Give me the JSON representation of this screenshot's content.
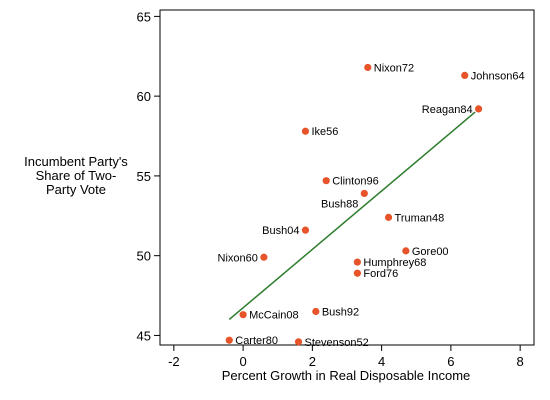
{
  "chart_data": {
    "type": "scatter",
    "xlabel": "Percent Growth in Real Disposable Income",
    "ylabel_lines": [
      "Incumbent Party's",
      "Share of Two-",
      "Party Vote"
    ],
    "xlim": [
      -2.4,
      8.4
    ],
    "ylim": [
      44.4,
      65.4
    ],
    "xticks": [
      -2,
      0,
      2,
      4,
      6,
      8
    ],
    "yticks": [
      45,
      50,
      55,
      60,
      65
    ],
    "grid": false,
    "marker_color": "#e8542a",
    "line_color": "#2e7d2e",
    "points": [
      {
        "label": "Nixon72",
        "x": 3.6,
        "y": 61.8
      },
      {
        "label": "Johnson64",
        "x": 6.4,
        "y": 61.3
      },
      {
        "label": "Reagan84",
        "x": 6.8,
        "y": 59.2
      },
      {
        "label": "Ike56",
        "x": 1.8,
        "y": 57.8
      },
      {
        "label": "Clinton96",
        "x": 2.4,
        "y": 54.7
      },
      {
        "label": "Bush88",
        "x": 3.5,
        "y": 53.9
      },
      {
        "label": "Truman48",
        "x": 4.2,
        "y": 52.4
      },
      {
        "label": "Bush04",
        "x": 1.8,
        "y": 51.6
      },
      {
        "label": "Gore00",
        "x": 4.7,
        "y": 50.3
      },
      {
        "label": "Nixon60",
        "x": 0.6,
        "y": 49.9
      },
      {
        "label": "Humphrey68",
        "x": 3.3,
        "y": 49.6
      },
      {
        "label": "Ford76",
        "x": 3.3,
        "y": 48.9
      },
      {
        "label": "McCain08",
        "x": 0.0,
        "y": 46.3
      },
      {
        "label": "Bush92",
        "x": 2.1,
        "y": 46.5
      },
      {
        "label": "Carter80",
        "x": -0.4,
        "y": 44.7
      },
      {
        "label": "Stevenson52",
        "x": 1.6,
        "y": 44.6
      }
    ],
    "fit_line": {
      "x": [
        -0.4,
        6.7
      ],
      "y": [
        46.0,
        59.0
      ]
    }
  }
}
